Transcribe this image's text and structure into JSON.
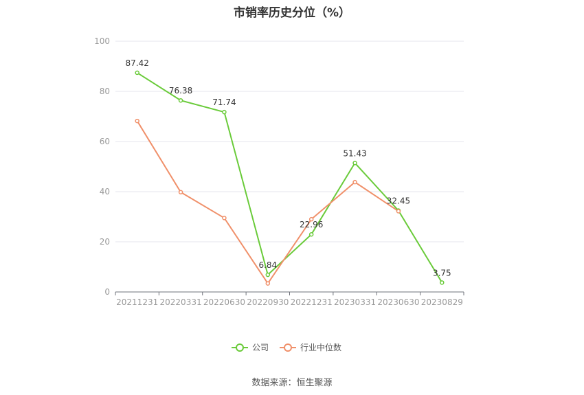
{
  "chart_data": {
    "type": "line",
    "title": "市销率历史分位（%）",
    "xlabel": "",
    "ylabel": "",
    "ylim": [
      0,
      100
    ],
    "yticks": [
      0,
      20,
      40,
      60,
      80,
      100
    ],
    "categories": [
      "20211231",
      "20220331",
      "20220630",
      "20220930",
      "20221231",
      "20230331",
      "20230630",
      "20230829"
    ],
    "series": [
      {
        "name": "公司",
        "color": "#6acb3a",
        "values": [
          87.42,
          76.38,
          71.74,
          6.84,
          22.96,
          51.43,
          32.45,
          3.75
        ],
        "labels": [
          "87.42",
          "76.38",
          "71.74",
          "6.84",
          "22.96",
          "51.43",
          "32.45",
          "3.75"
        ]
      },
      {
        "name": "行业中位数",
        "color": "#f0906a",
        "values": [
          68.2,
          39.8,
          29.5,
          3.4,
          29.0,
          43.8,
          32.2,
          null
        ]
      }
    ],
    "legend_position": "bottom",
    "grid": true
  },
  "source": "数据来源：恒生聚源"
}
